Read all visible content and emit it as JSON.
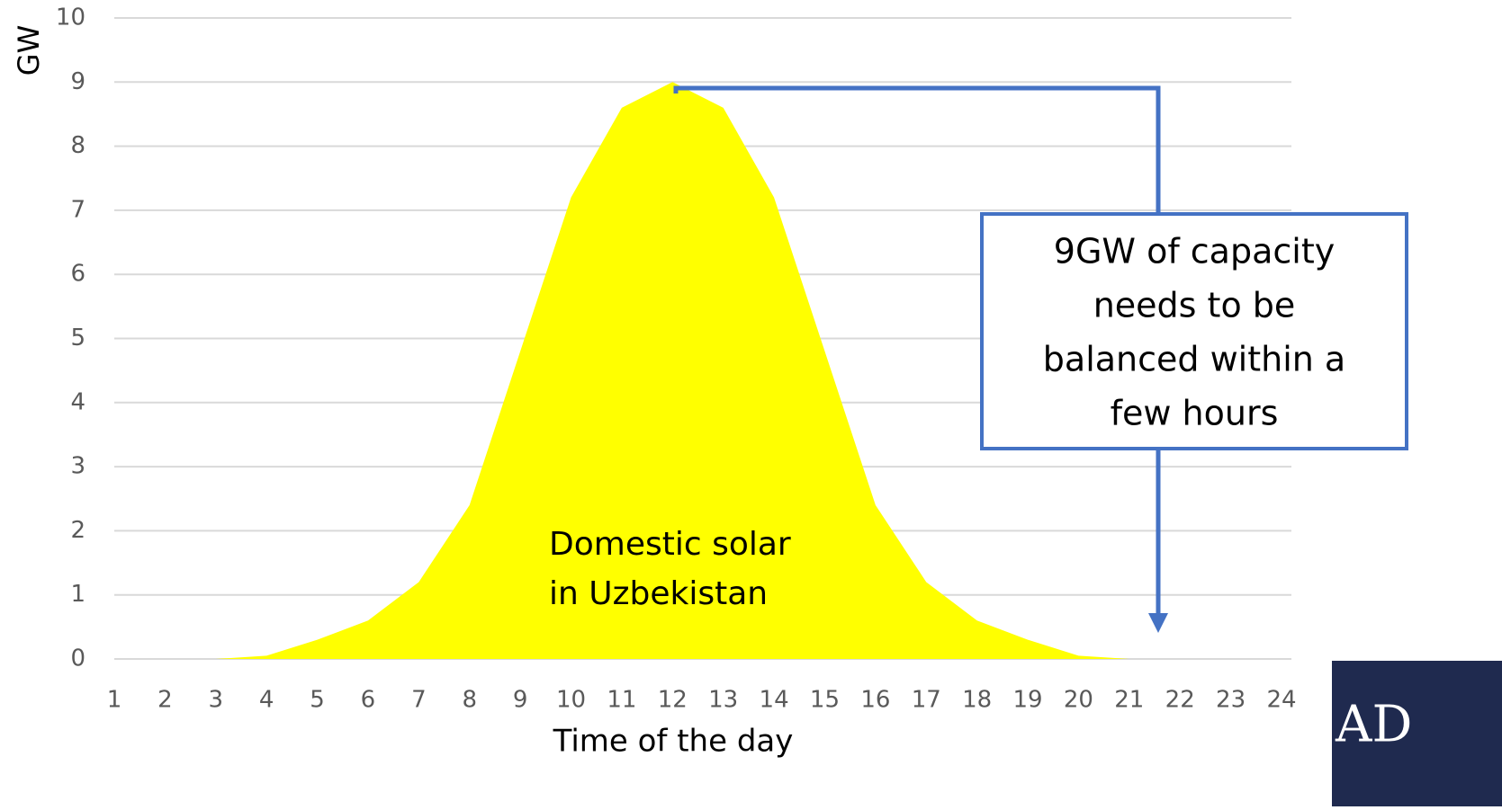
{
  "chart_data": {
    "type": "area",
    "y_label": "GW",
    "x_label": "Time of the day",
    "x": [
      1,
      2,
      3,
      4,
      5,
      6,
      7,
      8,
      9,
      10,
      11,
      12,
      13,
      14,
      15,
      16,
      17,
      18,
      19,
      20,
      21,
      22,
      23,
      24
    ],
    "values": [
      0,
      0,
      0,
      0.05,
      0.3,
      0.6,
      1.2,
      2.4,
      4.8,
      7.2,
      8.6,
      9,
      8.6,
      7.2,
      4.8,
      2.4,
      1.2,
      0.6,
      0.3,
      0.05,
      0,
      0,
      0,
      0
    ],
    "color": "#ffff00",
    "xlim": [
      1,
      24
    ],
    "xticks": [
      1,
      2,
      3,
      4,
      5,
      6,
      7,
      8,
      9,
      10,
      11,
      12,
      13,
      14,
      15,
      16,
      17,
      18,
      19,
      20,
      21,
      22,
      23,
      24
    ],
    "ylim": [
      0,
      10
    ],
    "yticks": [
      0,
      1,
      2,
      3,
      4,
      5,
      6,
      7,
      8,
      9,
      10
    ],
    "grid": true,
    "annotations": [
      {
        "lines": [
          "Domestic solar",
          "in Uzbekistan"
        ]
      },
      {
        "lines": [
          "9GW of capacity",
          "needs to be",
          "balanced within a",
          "few hours"
        ]
      }
    ],
    "logo": "AD"
  }
}
